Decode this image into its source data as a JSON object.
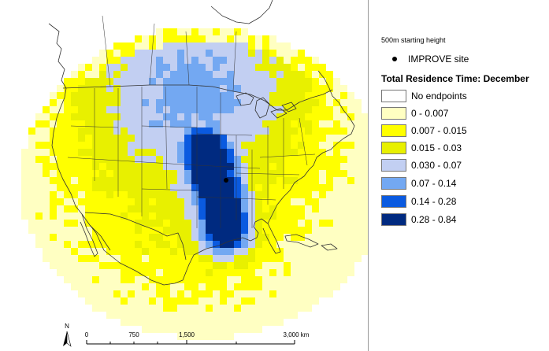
{
  "map": {
    "north_label": "N",
    "scale_bar": {
      "ticks": [
        "0",
        "750",
        "1,500",
        "3,000 km"
      ]
    },
    "palette": [
      "#ffffff",
      "#ffffc2",
      "#ffff00",
      "#e8f000",
      "#c2cff2",
      "#73a8f2",
      "#0a5ae0",
      "#002a80"
    ]
  },
  "legend": {
    "subtitle": "500m starting height",
    "site_label": "IMPROVE site",
    "title": "Total Residence Time: December",
    "classes": [
      {
        "label": "No endpoints",
        "color": "#ffffff"
      },
      {
        "label": "0 - 0.007",
        "color": "#ffffc2"
      },
      {
        "label": "0.007 - 0.015",
        "color": "#ffff00"
      },
      {
        "label": "0.015 - 0.03",
        "color": "#e8f000"
      },
      {
        "label": "0.030 - 0.07",
        "color": "#c2cff2"
      },
      {
        "label": "0.07 - 0.14",
        "color": "#73a8f2"
      },
      {
        "label": "0.14 - 0.28",
        "color": "#0a5ae0"
      },
      {
        "label": "0.28 - 0.84",
        "color": "#002a80"
      }
    ]
  }
}
